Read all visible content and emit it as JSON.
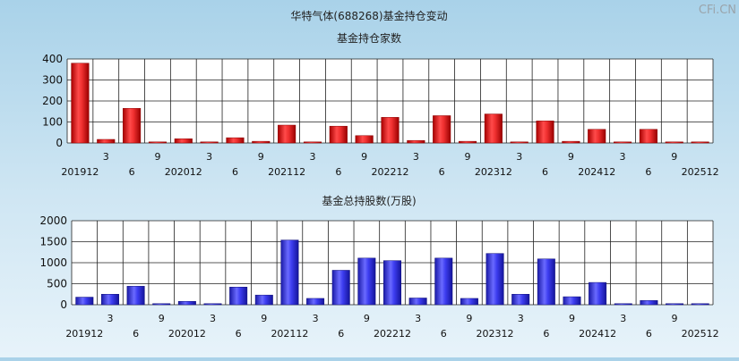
{
  "title": "华特气体(688268)基金持仓变动",
  "watermark": "CFi.CN",
  "tick_labels": [
    "201912",
    "3",
    "6",
    "9",
    "202012",
    "3",
    "6",
    "9",
    "202112",
    "3",
    "6",
    "9",
    "202212",
    "3",
    "6",
    "9",
    "202312",
    "3",
    "6",
    "9",
    "202412",
    "3",
    "6",
    "9",
    "202512"
  ],
  "chart_data": [
    {
      "type": "bar",
      "title": "基金持仓家数",
      "categories": [
        "201912",
        "202003",
        "202006",
        "202009",
        "202012",
        "202103",
        "202106",
        "202109",
        "202112",
        "202203",
        "202206",
        "202209",
        "202212",
        "202303",
        "202306",
        "202309",
        "202312",
        "202403",
        "202406",
        "202409",
        "202412",
        "202503",
        "202506",
        "202509",
        "202512"
      ],
      "values": [
        380,
        17,
        165,
        3,
        20,
        3,
        25,
        8,
        85,
        2,
        80,
        35,
        122,
        12,
        130,
        8,
        138,
        3,
        105,
        8,
        65,
        3,
        65,
        3,
        3
      ],
      "ylim": [
        0,
        400
      ],
      "yticks": [
        0,
        100,
        200,
        300,
        400
      ],
      "grid": true,
      "color": "#e02020"
    },
    {
      "type": "bar",
      "title": "基金总持股数(万股)",
      "categories": [
        "201912",
        "202003",
        "202006",
        "202009",
        "202012",
        "202103",
        "202106",
        "202109",
        "202112",
        "202203",
        "202206",
        "202209",
        "202212",
        "202303",
        "202306",
        "202309",
        "202312",
        "202403",
        "202406",
        "202409",
        "202412",
        "202503",
        "202506",
        "202509",
        "202512"
      ],
      "values": [
        180,
        250,
        440,
        8,
        80,
        8,
        420,
        230,
        1540,
        150,
        820,
        1110,
        1050,
        160,
        1110,
        150,
        1220,
        250,
        1090,
        190,
        530,
        8,
        100,
        8,
        8
      ],
      "ylim": [
        0,
        2000
      ],
      "yticks": [
        0,
        500,
        1000,
        1500,
        2000
      ],
      "grid": true,
      "color": "#2a2ae0"
    }
  ]
}
